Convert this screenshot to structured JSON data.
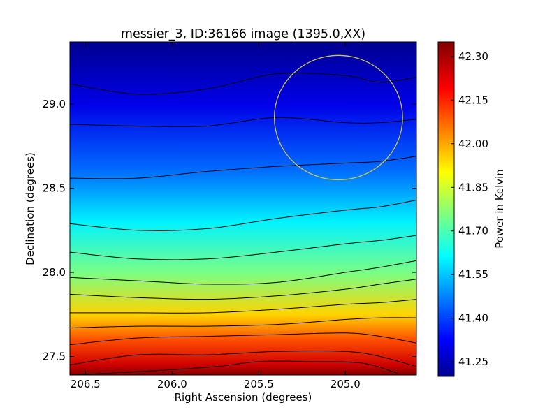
{
  "chart_data": {
    "type": "heatmap",
    "title": "messier_3, ID:36166 image (1395.0,XX)",
    "xlabel": "Right Ascension (degrees)",
    "ylabel": "Declination (degrees)",
    "colorbar_label": "Power in Kelvin",
    "colormap": "jet",
    "grid": false,
    "x_axis": {
      "inverted": true,
      "range": [
        206.59,
        204.59
      ],
      "ticks": [
        206.5,
        206.0,
        205.5,
        205.0
      ],
      "tick_labels": [
        "206.5",
        "206.0",
        "205.5",
        "205.0"
      ]
    },
    "y_axis": {
      "range": [
        27.39,
        29.37
      ],
      "ticks": [
        27.5,
        28.0,
        28.5,
        29.0
      ],
      "tick_labels": [
        "27.5",
        "28.0",
        "28.5",
        "29.0"
      ]
    },
    "colorbar": {
      "range": [
        41.2,
        42.35
      ],
      "ticks": [
        41.25,
        41.4,
        41.55,
        41.7,
        41.85,
        42.0,
        42.15,
        42.3
      ],
      "tick_labels": [
        "41.25",
        "41.40",
        "41.55",
        "41.70",
        "41.85",
        "42.00",
        "42.15",
        "42.30"
      ]
    },
    "contours": [
      {
        "dec": [
          29.12,
          29.06,
          29.09,
          29.18,
          29.17,
          29.13,
          29.16
        ],
        "ra": [
          206.59,
          206.2,
          205.8,
          205.4,
          205.0,
          204.8,
          204.59
        ]
      },
      {
        "dec": [
          28.88,
          28.87,
          28.87,
          28.92,
          28.89,
          28.89,
          28.91
        ],
        "ra": [
          206.59,
          206.2,
          205.8,
          205.4,
          205.0,
          204.8,
          204.59
        ]
      },
      {
        "dec": [
          28.56,
          28.56,
          28.6,
          28.63,
          28.65,
          28.66,
          28.69
        ],
        "ra": [
          206.59,
          206.2,
          205.8,
          205.4,
          205.0,
          204.8,
          204.59
        ]
      },
      {
        "dec": [
          28.29,
          28.25,
          28.26,
          28.32,
          28.37,
          28.39,
          28.43
        ],
        "ra": [
          206.59,
          206.2,
          205.8,
          205.4,
          205.0,
          204.8,
          204.59
        ]
      },
      {
        "dec": [
          28.12,
          28.08,
          28.08,
          28.12,
          28.17,
          28.19,
          28.22
        ],
        "ra": [
          206.59,
          206.2,
          205.8,
          205.4,
          205.0,
          204.8,
          204.59
        ]
      },
      {
        "dec": [
          27.97,
          27.95,
          27.93,
          27.94,
          28.0,
          28.03,
          28.07
        ],
        "ra": [
          206.59,
          206.2,
          205.8,
          205.4,
          205.0,
          204.8,
          204.59
        ]
      },
      {
        "dec": [
          27.87,
          27.85,
          27.84,
          27.86,
          27.9,
          27.93,
          27.96
        ],
        "ra": [
          206.59,
          206.2,
          205.8,
          205.4,
          205.0,
          204.8,
          204.59
        ]
      },
      {
        "dec": [
          27.76,
          27.76,
          27.76,
          27.78,
          27.81,
          27.82,
          27.84
        ],
        "ra": [
          206.59,
          206.2,
          205.8,
          205.4,
          205.0,
          204.8,
          204.59
        ]
      },
      {
        "dec": [
          27.67,
          27.68,
          27.68,
          27.69,
          27.72,
          27.73,
          27.73
        ],
        "ra": [
          206.59,
          206.2,
          205.8,
          205.4,
          205.0,
          204.8,
          204.59
        ]
      },
      {
        "dec": [
          27.57,
          27.61,
          27.62,
          27.63,
          27.64,
          27.62,
          27.58
        ],
        "ra": [
          206.59,
          206.2,
          205.8,
          205.4,
          205.0,
          204.8,
          204.59
        ]
      },
      {
        "dec": [
          27.45,
          27.51,
          27.51,
          27.53,
          27.53,
          27.5,
          27.44
        ],
        "ra": [
          206.59,
          206.2,
          205.8,
          205.4,
          205.0,
          204.8,
          204.59
        ]
      },
      {
        "dec": [
          27.39,
          27.41,
          27.44,
          27.47,
          27.47,
          27.46,
          27.4
        ],
        "ra": [
          206.59,
          206.2,
          205.75,
          205.5,
          205.2,
          204.9,
          204.7
        ]
      }
    ],
    "gradient": {
      "dec": [
        29.37,
        29.0,
        28.6,
        28.3,
        28.0,
        27.75,
        27.6,
        27.45,
        27.39
      ],
      "value": [
        41.2,
        41.3,
        41.45,
        41.6,
        41.75,
        41.95,
        42.1,
        42.25,
        42.35
      ]
    },
    "annotations": [
      {
        "type": "circle",
        "ra_center": 205.04,
        "dec_center": 28.92,
        "radius_deg": 0.37,
        "color": "#c8c84a"
      }
    ]
  }
}
